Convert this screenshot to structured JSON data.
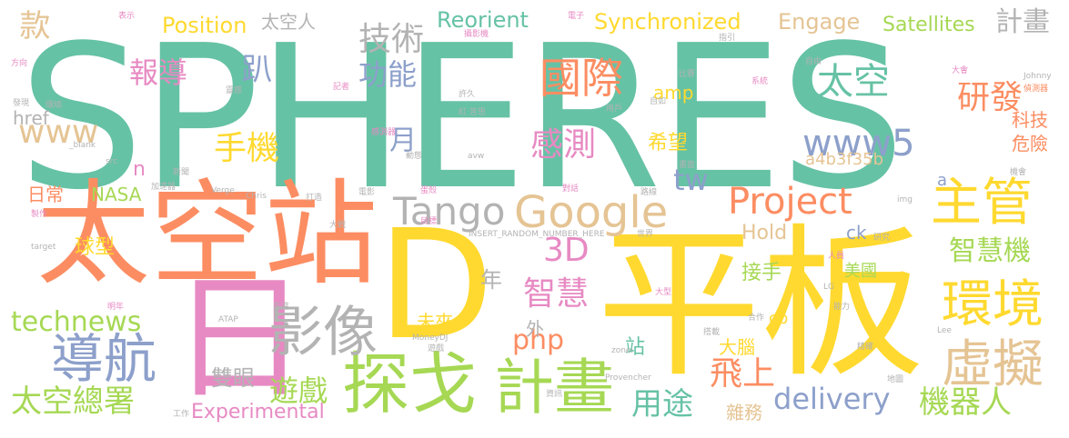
{
  "palette": {
    "teal": "#66c2a5",
    "orange": "#fc8d62",
    "slate": "#8da0cb",
    "pink": "#e78ac3",
    "lime": "#a6d854",
    "yellow": "#ffd92f",
    "tan": "#e5c494",
    "gray": "#b3b3b3"
  },
  "words": [
    "SPHERES",
    "太空站",
    "平板",
    "D",
    "日",
    "探戈",
    "計畫",
    "Google",
    "主管",
    "影像",
    "導航",
    "環境",
    "虛擬",
    "Project",
    "Tango",
    "國際",
    "太空",
    "技術",
    "報導",
    "功能",
    "手機",
    "感測",
    "www5",
    "研發",
    "3D",
    "太空總署",
    "technews",
    "delivery",
    "機器人",
    "智慧",
    "智慧機",
    "遊戲",
    "飛上",
    "tw",
    "www",
    "php",
    "Experimental",
    "雙眼",
    "用途",
    "Synchronized",
    "Position",
    "Engage",
    "Reorient",
    "Satellites",
    "計畫",
    "款",
    "太空人",
    "趴",
    "月",
    "希望",
    "amp",
    "a4b3f35b",
    "科技",
    "危險",
    "日常",
    "球型",
    "NASA",
    "href",
    "Hold",
    "ck",
    "年",
    "外",
    "接手",
    "美國",
    "未來",
    "站",
    "大腦",
    "cb",
    "雜務",
    "n",
    "a"
  ],
  "minor_words": [
    "_blank",
    "src",
    "Verge",
    "Chris",
    "INSERT_RANDOM_NUMBER_HERE",
    "MoneyDJ",
    "ATAP",
    "zonei",
    "Provencher",
    "Johnny",
    "img",
    "Lee",
    "avw",
    "LG",
    "target",
    "感測器",
    "偵測器",
    "攝影機",
    "電子",
    "系統",
    "世界",
    "研究",
    "目標",
    "大戰",
    "新聞",
    "記者",
    "方向",
    "發現",
    "用戶",
    "自由",
    "製作",
    "能力",
    "機會",
    "地圖",
    "資訊",
    "合作",
    "大會",
    "比賽",
    "打造",
    "搭載",
    "精確",
    "環繞",
    "加速器",
    "靈感",
    "人員",
    "大型",
    "明年",
    "先進",
    "自如",
    "指引",
    "表示",
    "苦思",
    "紅",
    "許久",
    "動態",
    "電影",
    "對話",
    "路線",
    "蛋殼",
    "畫面",
    "遊戲",
    "工作"
  ]
}
